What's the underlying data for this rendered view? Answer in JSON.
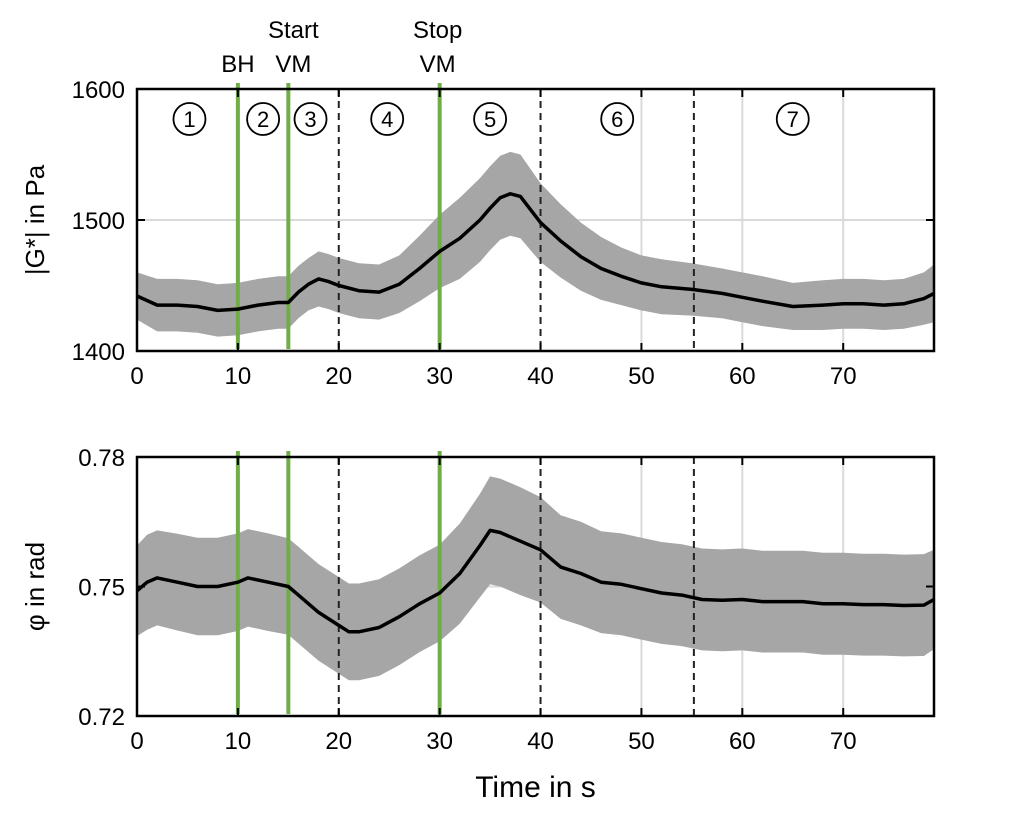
{
  "chart_data": [
    {
      "type": "line",
      "panel": "top",
      "ylabel": "|G*| in Pa",
      "xlabel": "",
      "xlim": [
        0,
        79
      ],
      "ylim": [
        1400,
        1600
      ],
      "xticks": [
        0,
        10,
        20,
        30,
        40,
        50,
        60,
        70
      ],
      "yticks": [
        1400,
        1500,
        1600
      ],
      "grid": true,
      "series": [
        {
          "name": "mean",
          "x": [
            0,
            2,
            4,
            6,
            8,
            10,
            12,
            14,
            15,
            16,
            17,
            18,
            19,
            20,
            22,
            24,
            26,
            28,
            30,
            32,
            34,
            35,
            36,
            37,
            38,
            40,
            42,
            44,
            46,
            48,
            50,
            52,
            55,
            58,
            60,
            62,
            65,
            68,
            70,
            72,
            74,
            76,
            78,
            79
          ],
          "y": [
            1442,
            1435,
            1435,
            1434,
            1431,
            1432,
            1435,
            1437,
            1437,
            1445,
            1451,
            1455,
            1453,
            1450,
            1446,
            1445,
            1451,
            1463,
            1476,
            1486,
            1500,
            1509,
            1517,
            1520,
            1518,
            1498,
            1484,
            1472,
            1463,
            1457,
            1452,
            1449,
            1447,
            1444,
            1441,
            1438,
            1434,
            1435,
            1436,
            1436,
            1435,
            1436,
            1440,
            1444
          ],
          "band_halfwidth": [
            18,
            20,
            20,
            20,
            20,
            20,
            20,
            20,
            20,
            20,
            20,
            21,
            21,
            21,
            21,
            21,
            22,
            25,
            28,
            31,
            32,
            32,
            32,
            32,
            32,
            30,
            28,
            26,
            24,
            22,
            21,
            21,
            20,
            19,
            19,
            19,
            18,
            19,
            19,
            19,
            19,
            19,
            20,
            22
          ]
        }
      ],
      "vlines_green": [
        10,
        15,
        30
      ],
      "vlines_dashed": [
        20,
        40,
        55.2
      ],
      "vgrid_x": [
        50,
        60,
        70
      ]
    },
    {
      "type": "line",
      "panel": "bottom",
      "ylabel": "φ in rad",
      "xlabel": "Time in s",
      "xlim": [
        0,
        79
      ],
      "ylim": [
        0.72,
        0.78
      ],
      "xticks": [
        0,
        10,
        20,
        30,
        40,
        50,
        60,
        70
      ],
      "yticks": [
        0.72,
        0.75,
        0.78
      ],
      "ytick_labels": [
        "0.72",
        "0.75",
        "0.78"
      ],
      "grid": true,
      "series": [
        {
          "name": "mean",
          "x": [
            0,
            1,
            2,
            4,
            6,
            8,
            10,
            11,
            13,
            15,
            16,
            18,
            20,
            21,
            22,
            24,
            26,
            28,
            30,
            32,
            34,
            35,
            36,
            38,
            40,
            42,
            44,
            46,
            48,
            50,
            52,
            54,
            56,
            58,
            60,
            62,
            64,
            66,
            68,
            70,
            72,
            74,
            76,
            78,
            79
          ],
          "y": [
            0.749,
            0.751,
            0.752,
            0.751,
            0.75,
            0.75,
            0.751,
            0.752,
            0.751,
            0.75,
            0.748,
            0.744,
            0.741,
            0.7395,
            0.7395,
            0.7405,
            0.743,
            0.746,
            0.7485,
            0.753,
            0.7595,
            0.763,
            0.7625,
            0.7605,
            0.7585,
            0.7545,
            0.753,
            0.751,
            0.7505,
            0.7495,
            0.7485,
            0.748,
            0.747,
            0.7468,
            0.747,
            0.7465,
            0.7465,
            0.7465,
            0.746,
            0.746,
            0.7458,
            0.7458,
            0.7456,
            0.7457,
            0.747
          ],
          "band_halfwidth": [
            0.0105,
            0.011,
            0.011,
            0.0112,
            0.0113,
            0.0113,
            0.0113,
            0.0113,
            0.0113,
            0.0112,
            0.0112,
            0.0112,
            0.0112,
            0.0112,
            0.0112,
            0.0112,
            0.0112,
            0.0112,
            0.0112,
            0.0116,
            0.012,
            0.0125,
            0.0125,
            0.0125,
            0.0122,
            0.012,
            0.012,
            0.0118,
            0.0118,
            0.0118,
            0.0118,
            0.0118,
            0.0118,
            0.0118,
            0.0118,
            0.0118,
            0.0118,
            0.0118,
            0.0118,
            0.0118,
            0.0118,
            0.0118,
            0.0118,
            0.0118,
            0.0115
          ]
        }
      ],
      "vlines_green": [
        10,
        15,
        30
      ],
      "vlines_dashed": [
        20,
        40,
        55.2
      ],
      "vgrid_x": [
        50,
        60,
        70
      ]
    }
  ],
  "annotations": {
    "bh": "BH",
    "start_vm_line1": "Start",
    "start_vm_line2": "VM",
    "stop_vm_line1": "Stop",
    "stop_vm_line2": "VM"
  },
  "phases": [
    {
      "label": "1",
      "x": 5.2
    },
    {
      "label": "2",
      "x": 12.5
    },
    {
      "label": "3",
      "x": 17.2
    },
    {
      "label": "4",
      "x": 24.8
    },
    {
      "label": "5",
      "x": 35.0
    },
    {
      "label": "6",
      "x": 47.6
    },
    {
      "label": "7",
      "x": 65.0
    }
  ],
  "colors": {
    "green": "#70ad47",
    "band": "#a6a6a6",
    "line": "#000000",
    "grid": "#d9d9d9"
  }
}
